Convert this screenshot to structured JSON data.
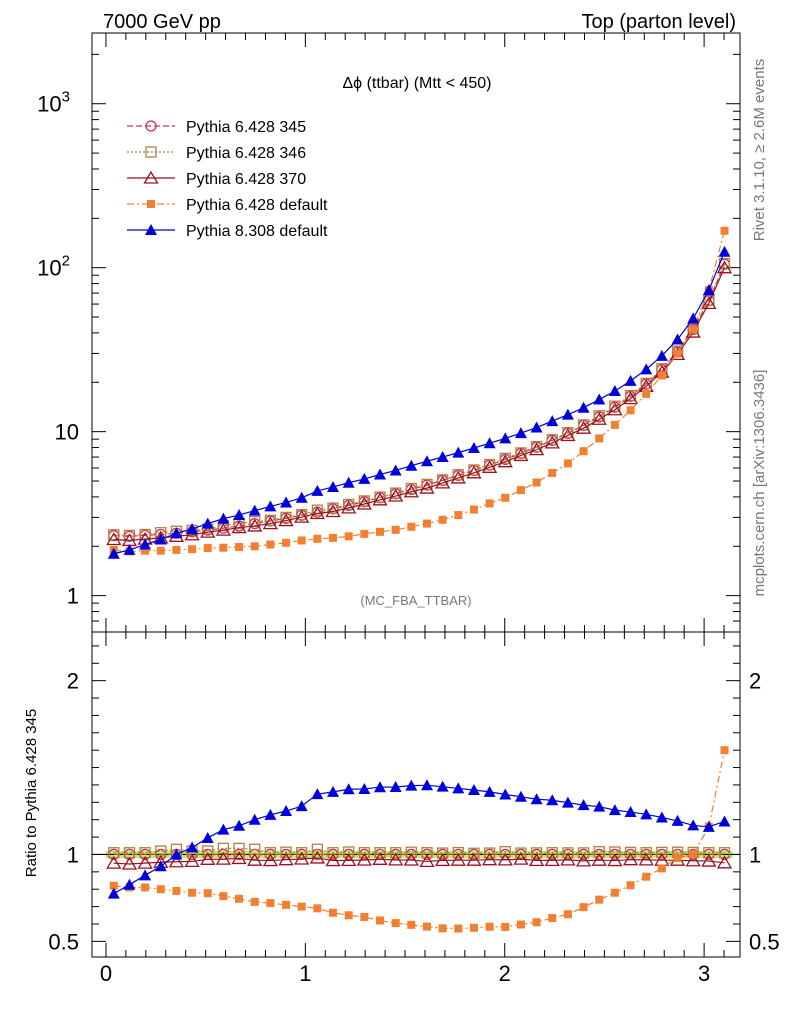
{
  "header": {
    "left": "7000 GeV pp",
    "right": "Top (parton level)"
  },
  "side": {
    "rivet": "Rivet 3.1.10, ≥ 2.6M events",
    "mcplots": "mcplots.cern.ch [arXiv:1306.3436]"
  },
  "chart_data": {
    "type": "line",
    "title": "Δϕ (ttbar) (Mtt < 450)",
    "analysis_tag": "(MC_FBA_TTBAR)",
    "x": [
      0.0393,
      0.1178,
      0.1963,
      0.2749,
      0.3534,
      0.432,
      0.5105,
      0.589,
      0.6676,
      0.7461,
      0.8247,
      0.9032,
      0.9817,
      1.0603,
      1.1388,
      1.2174,
      1.2959,
      1.3744,
      1.453,
      1.5315,
      1.6101,
      1.6886,
      1.7671,
      1.8457,
      1.9242,
      2.0028,
      2.0813,
      2.1598,
      2.2384,
      2.3169,
      2.3955,
      2.474,
      2.5525,
      2.6311,
      2.7096,
      2.7882,
      2.8667,
      2.9452,
      3.0238,
      3.1023
    ],
    "xlim": [
      -0.07,
      3.18
    ],
    "xticks": [
      "0",
      "1",
      "2",
      "3"
    ],
    "main_panel": {
      "yscale": "log",
      "ylim": [
        0.6,
        2700
      ],
      "yticks": [
        "1",
        "10",
        "10²",
        "10³"
      ],
      "legend_position": "top-left",
      "series": [
        {
          "name": "Pythia 6.428 345",
          "color": "#cc3355",
          "marker": "open-circle",
          "line": "dashed",
          "values": [
            2.32,
            2.3,
            2.33,
            2.36,
            2.4,
            2.45,
            2.51,
            2.58,
            2.66,
            2.75,
            2.85,
            2.96,
            3.09,
            3.23,
            3.38,
            3.55,
            3.74,
            3.95,
            4.18,
            4.44,
            4.72,
            5.04,
            5.4,
            5.8,
            6.25,
            6.77,
            7.36,
            8.04,
            8.84,
            9.78,
            10.9,
            12.3,
            14.1,
            16.4,
            19.5,
            23.9,
            30.6,
            42,
            63,
            105
          ]
        },
        {
          "name": "Pythia 6.428 346",
          "color": "#b08040",
          "marker": "open-square",
          "line": "dotted",
          "values": [
            2.35,
            2.33,
            2.36,
            2.42,
            2.47,
            2.5,
            2.55,
            2.67,
            2.75,
            2.83,
            2.88,
            3.0,
            3.12,
            3.32,
            3.42,
            3.6,
            3.78,
            3.99,
            4.22,
            4.5,
            4.77,
            5.08,
            5.46,
            5.84,
            6.3,
            6.88,
            7.42,
            8.11,
            8.93,
            9.87,
            11.0,
            12.5,
            14.3,
            16.6,
            19.7,
            24.2,
            31.0,
            42.5,
            63.6,
            106
          ]
        },
        {
          "name": "Pythia 6.428 370",
          "color": "#991122",
          "marker": "open-triangle",
          "line": "solid",
          "values": [
            2.2,
            2.17,
            2.21,
            2.25,
            2.3,
            2.35,
            2.44,
            2.51,
            2.6,
            2.66,
            2.75,
            2.87,
            3.01,
            3.17,
            3.26,
            3.43,
            3.62,
            3.84,
            4.05,
            4.3,
            4.53,
            4.87,
            5.22,
            5.61,
            6.06,
            6.56,
            7.16,
            7.77,
            8.54,
            9.48,
            10.5,
            11.9,
            13.6,
            15.9,
            18.9,
            23.1,
            29.6,
            40.5,
            60.6,
            100
          ]
        },
        {
          "name": "Pythia 6.428 default",
          "color": "#f28030",
          "marker": "filled-square",
          "line": "dashdot",
          "values": [
            1.9,
            1.86,
            1.88,
            1.88,
            1.9,
            1.92,
            1.95,
            1.96,
            1.98,
            2.0,
            2.05,
            2.1,
            2.17,
            2.22,
            2.25,
            2.3,
            2.38,
            2.45,
            2.52,
            2.63,
            2.75,
            2.9,
            3.1,
            3.35,
            3.65,
            3.95,
            4.4,
            4.9,
            5.6,
            6.4,
            7.6,
            9.1,
            11.0,
            13.5,
            17.0,
            22.0,
            30.0,
            42.0,
            73.0,
            168
          ]
        },
        {
          "name": "Pythia 8.308 default",
          "color": "#0000dd",
          "marker": "filled-triangle",
          "line": "solid",
          "values": [
            1.8,
            1.9,
            2.05,
            2.2,
            2.4,
            2.55,
            2.75,
            2.95,
            3.1,
            3.3,
            3.5,
            3.7,
            3.95,
            4.35,
            4.6,
            4.88,
            5.15,
            5.48,
            5.8,
            6.2,
            6.6,
            7.0,
            7.45,
            7.95,
            8.5,
            9.1,
            9.8,
            10.6,
            11.6,
            12.7,
            14.0,
            15.7,
            17.7,
            20.4,
            24.0,
            29.0,
            36.5,
            49.0,
            73.0,
            125
          ]
        }
      ]
    },
    "ratio_panel": {
      "ylabel": "Ratio to Pythia 6.428 345",
      "ylim": [
        0.41,
        2.28
      ],
      "yticks": [
        "0.5",
        "1",
        "2"
      ],
      "band_color": "#bbee66",
      "series": [
        {
          "name": "Pythia 6.428 346",
          "values": [
            1.01,
            1.01,
            1.01,
            1.02,
            1.03,
            1.02,
            1.02,
            1.035,
            1.035,
            1.03,
            1.01,
            1.013,
            1.01,
            1.03,
            1.01,
            1.014,
            1.01,
            1.01,
            1.01,
            1.013,
            1.01,
            1.008,
            1.011,
            1.007,
            1.008,
            1.016,
            1.008,
            1.009,
            1.01,
            1.009,
            1.009,
            1.016,
            1.014,
            1.012,
            1.01,
            1.012,
            1.013,
            1.012,
            1.01,
            1.01
          ]
        },
        {
          "name": "Pythia 6.428 370",
          "values": [
            0.95,
            0.945,
            0.95,
            0.955,
            0.958,
            0.96,
            0.972,
            0.973,
            0.977,
            0.967,
            0.965,
            0.97,
            0.974,
            0.98,
            0.965,
            0.966,
            0.968,
            0.972,
            0.969,
            0.968,
            0.96,
            0.966,
            0.967,
            0.967,
            0.97,
            0.969,
            0.973,
            0.966,
            0.966,
            0.969,
            0.963,
            0.967,
            0.965,
            0.97,
            0.969,
            0.967,
            0.967,
            0.964,
            0.962,
            0.952
          ]
        },
        {
          "name": "Pythia 6.428 default",
          "values": [
            0.82,
            0.81,
            0.81,
            0.8,
            0.79,
            0.78,
            0.777,
            0.76,
            0.745,
            0.727,
            0.72,
            0.71,
            0.7,
            0.69,
            0.665,
            0.65,
            0.64,
            0.62,
            0.605,
            0.595,
            0.585,
            0.575,
            0.574,
            0.578,
            0.584,
            0.583,
            0.597,
            0.61,
            0.634,
            0.656,
            0.697,
            0.74,
            0.78,
            0.823,
            0.872,
            0.92,
            0.98,
            1.0,
            1.16,
            1.6
          ]
        },
        {
          "name": "Pythia 8.308 default",
          "values": [
            0.775,
            0.826,
            0.88,
            0.932,
            1.0,
            1.04,
            1.095,
            1.143,
            1.165,
            1.2,
            1.228,
            1.25,
            1.278,
            1.347,
            1.36,
            1.375,
            1.377,
            1.387,
            1.388,
            1.396,
            1.398,
            1.39,
            1.38,
            1.371,
            1.36,
            1.345,
            1.332,
            1.318,
            1.312,
            1.298,
            1.284,
            1.275,
            1.255,
            1.244,
            1.231,
            1.213,
            1.193,
            1.167,
            1.159,
            1.19
          ]
        }
      ]
    }
  }
}
